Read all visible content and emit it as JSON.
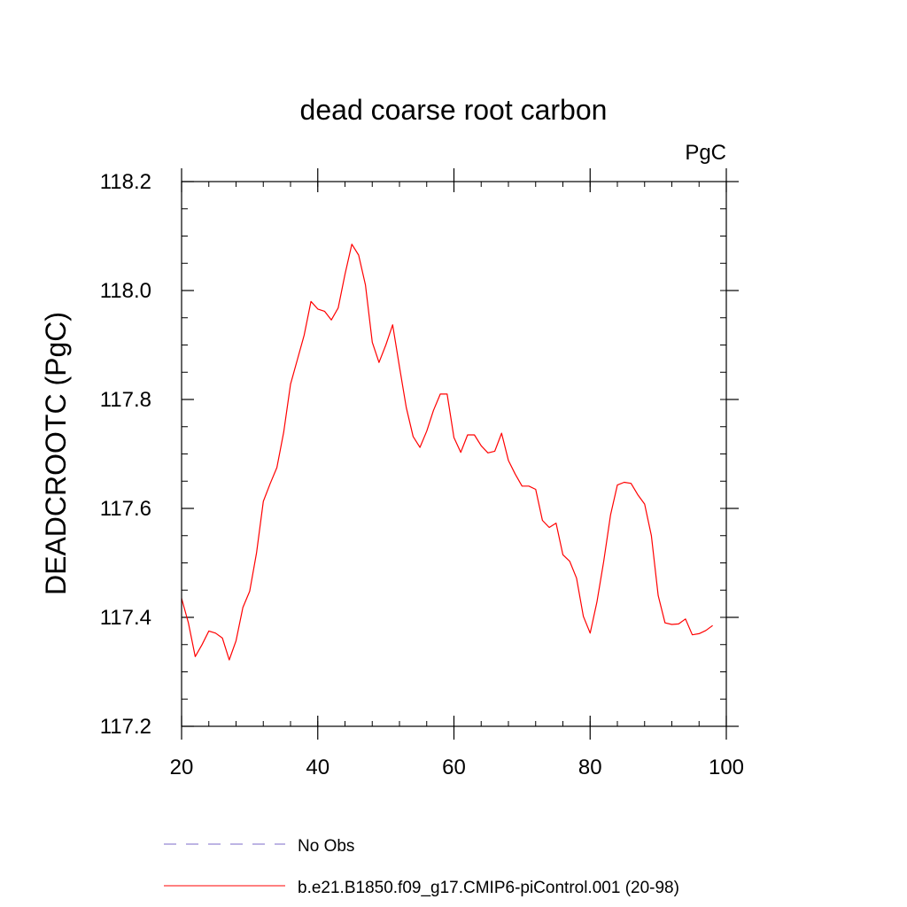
{
  "chart_data": {
    "type": "line",
    "title": "dead coarse root carbon",
    "units_label": "PgC",
    "xlabel": "",
    "ylabel": "DEADCROOTC  (PgC)",
    "xlim": [
      20,
      100
    ],
    "ylim": [
      117.2,
      118.2
    ],
    "x_ticks": [
      20,
      40,
      60,
      80,
      100
    ],
    "y_ticks": [
      117.2,
      117.4,
      117.6,
      117.8,
      118.0,
      118.2
    ],
    "x_tick_labels": [
      "20",
      "40",
      "60",
      "80",
      "100"
    ],
    "y_tick_labels": [
      "117.2",
      "117.4",
      "117.6",
      "117.8",
      "118.0",
      "118.2"
    ],
    "grid": false,
    "legend_position": "bottom",
    "series": [
      {
        "name": "No Obs",
        "color": "#7b68c8",
        "dash": true,
        "x": [],
        "y": []
      },
      {
        "name": "b.e21.B1850.f09_g17.CMIP6-piControl.001 (20-98)",
        "color": "#ff0000",
        "dash": false,
        "x": [
          20,
          21,
          22,
          23,
          24,
          25,
          26,
          27,
          28,
          29,
          30,
          31,
          32,
          33,
          34,
          35,
          36,
          37,
          38,
          39,
          40,
          41,
          42,
          43,
          44,
          45,
          46,
          47,
          48,
          49,
          50,
          51,
          52,
          53,
          54,
          55,
          56,
          57,
          58,
          59,
          60,
          61,
          62,
          63,
          64,
          65,
          66,
          67,
          68,
          69,
          70,
          71,
          72,
          73,
          74,
          75,
          76,
          77,
          78,
          79,
          80,
          81,
          82,
          83,
          84,
          85,
          86,
          87,
          88,
          89,
          90,
          91,
          92,
          93,
          94,
          95,
          96,
          97,
          98
        ],
        "y": [
          117.435,
          117.39,
          117.328,
          117.35,
          117.375,
          117.371,
          117.362,
          117.322,
          117.357,
          117.418,
          117.448,
          117.518,
          117.613,
          117.645,
          117.675,
          117.74,
          117.828,
          117.873,
          117.918,
          117.98,
          117.966,
          117.962,
          117.946,
          117.968,
          118.03,
          118.085,
          118.065,
          118.01,
          117.905,
          117.868,
          117.9,
          117.937,
          117.86,
          117.785,
          117.732,
          117.712,
          117.742,
          117.78,
          117.81,
          117.81,
          117.73,
          117.703,
          117.735,
          117.735,
          117.715,
          117.702,
          117.705,
          117.738,
          117.688,
          117.663,
          117.641,
          117.641,
          117.635,
          117.578,
          117.565,
          117.573,
          117.515,
          117.503,
          117.472,
          117.402,
          117.371,
          117.428,
          117.503,
          117.588,
          117.643,
          117.648,
          117.646,
          117.625,
          117.608,
          117.55,
          117.44,
          117.39,
          117.387,
          117.388,
          117.397,
          117.368,
          117.37,
          117.376,
          117.385
        ]
      }
    ]
  }
}
